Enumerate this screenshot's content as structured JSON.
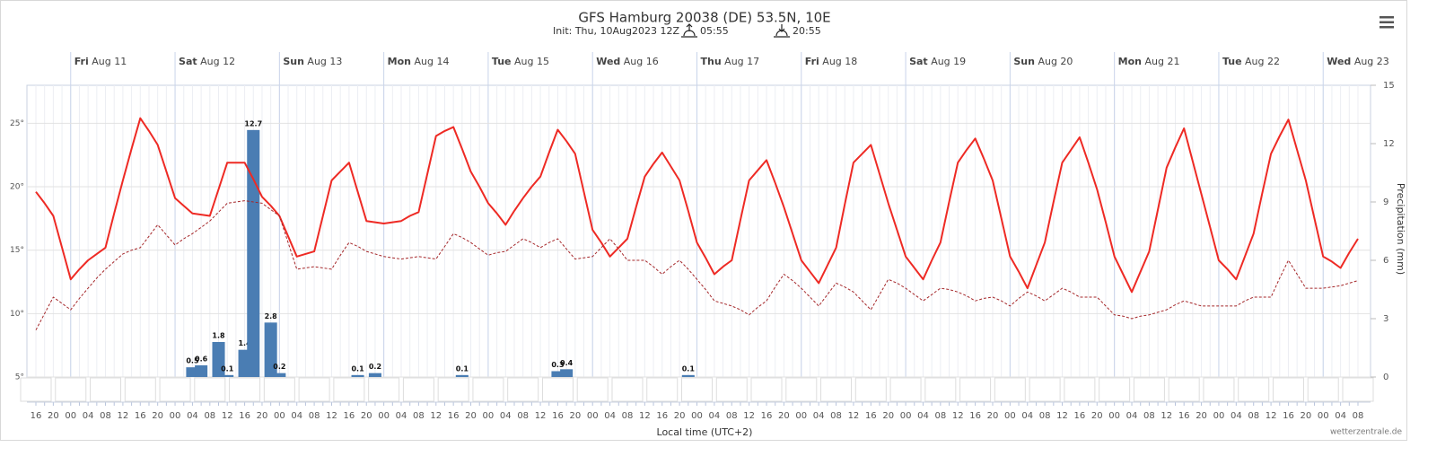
{
  "chart_data": {
    "type": "line",
    "title": "GFS Hamburg 20038 (DE) 53.5N, 10E",
    "subtitle": "Init: Thu, 10Aug2023 12Z",
    "sunrise": "05:55",
    "sunset": "20:55",
    "x_label": "Local time (UTC+2)",
    "y2_label": "Precipitation (mm)",
    "credit": "wetterzentrale.de",
    "days": [
      {
        "weekday": "Fri",
        "date": "Aug 11"
      },
      {
        "weekday": "Sat",
        "date": "Aug 12"
      },
      {
        "weekday": "Sun",
        "date": "Aug 13"
      },
      {
        "weekday": "Mon",
        "date": "Aug 14"
      },
      {
        "weekday": "Tue",
        "date": "Aug 15"
      },
      {
        "weekday": "Wed",
        "date": "Aug 16"
      },
      {
        "weekday": "Thu",
        "date": "Aug 17"
      },
      {
        "weekday": "Fri",
        "date": "Aug 18"
      },
      {
        "weekday": "Sat",
        "date": "Aug 19"
      },
      {
        "weekday": "Sun",
        "date": "Aug 20"
      },
      {
        "weekday": "Mon",
        "date": "Aug 21"
      },
      {
        "weekday": "Tue",
        "date": "Aug 22"
      },
      {
        "weekday": "Wed",
        "date": "Aug 23"
      }
    ],
    "categories": [
      "16",
      null,
      "20",
      null,
      "00",
      null,
      "04",
      null,
      "08",
      null,
      "12",
      null,
      "16",
      null,
      "20",
      null,
      "00",
      null,
      "04",
      null,
      "08",
      null,
      "12",
      null,
      "16",
      null,
      "20",
      null,
      "00",
      null,
      "04",
      null,
      "08",
      null,
      "12",
      null,
      "16",
      null,
      "20",
      null,
      "00",
      null,
      "04",
      null,
      "08",
      null,
      "12",
      null,
      "16",
      null,
      "20",
      null,
      "00",
      null,
      "04",
      null,
      "08",
      null,
      "12",
      null,
      "16",
      null,
      "20",
      null,
      "00",
      null,
      "04",
      null,
      "08",
      null,
      "12",
      null,
      "16",
      null,
      "20",
      null,
      "00",
      null,
      "04",
      null,
      "08",
      null,
      "12",
      null,
      "16",
      null,
      "20",
      null,
      "00",
      null,
      "04",
      null,
      "08",
      null,
      "12",
      null,
      "16",
      null,
      "20",
      null,
      "00",
      null,
      "04",
      null,
      "08",
      null,
      "12",
      null,
      "16",
      null,
      "20",
      null,
      "00",
      null,
      "04",
      null,
      "08",
      null,
      "12",
      null,
      "16",
      null,
      "20",
      null,
      "00",
      null,
      "04",
      null,
      "08",
      null,
      "12",
      null,
      "16",
      null,
      "20",
      null,
      "00",
      null,
      "04",
      null,
      "08",
      null,
      "12",
      null,
      "16",
      null,
      "20",
      null,
      "00",
      null,
      "04",
      null,
      "08"
    ],
    "series": [
      {
        "type": "line",
        "color": "#ee2a24",
        "dashed": false,
        "values": [
          19.6,
          18.7,
          17.7,
          15.2,
          12.7,
          13.5,
          14.2,
          14.7,
          15.2,
          17.9,
          20.5,
          23.0,
          25.4,
          24.4,
          23.3,
          21.2,
          19.1,
          18.5,
          17.9,
          17.8,
          17.7,
          19.8,
          21.9,
          21.9,
          21.9,
          20.6,
          19.2,
          18.5,
          17.7,
          16.1,
          14.5,
          14.7,
          14.9,
          17.7,
          20.5,
          21.2,
          21.9,
          19.6,
          17.3,
          17.2,
          17.1,
          17.2,
          17.3,
          17.7,
          18.0,
          21.0,
          24.0,
          24.4,
          24.7,
          23.0,
          21.2,
          20.0,
          18.7,
          17.9,
          17.0,
          18.1,
          19.1,
          20.0,
          20.8,
          22.7,
          24.5,
          23.6,
          22.6,
          19.6,
          16.6,
          15.6,
          14.5,
          15.2,
          15.9,
          18.4,
          20.8,
          21.8,
          22.7,
          21.6,
          20.5,
          18.1,
          15.6,
          14.4,
          13.1,
          13.7,
          14.2,
          17.4,
          20.5,
          21.3,
          22.1,
          20.3,
          18.4,
          16.3,
          14.2,
          13.3,
          12.4,
          13.8,
          15.2,
          18.6,
          21.9,
          22.6,
          23.3,
          21.0,
          18.7,
          16.6,
          14.5,
          13.6,
          12.7,
          14.2,
          15.6,
          18.8,
          21.9,
          22.9,
          23.8,
          22.2,
          20.5,
          17.5,
          14.5,
          13.3,
          12.0,
          13.8,
          15.6,
          18.8,
          21.9,
          22.9,
          23.9,
          21.9,
          19.8,
          17.2,
          14.5,
          13.1,
          11.7,
          13.3,
          14.9,
          18.2,
          21.5,
          23.1,
          24.6,
          22.0,
          19.4,
          16.8,
          14.2,
          13.5,
          12.7,
          14.5,
          16.3,
          19.5,
          22.6,
          24.0,
          25.3,
          22.9,
          20.5,
          17.5,
          14.5,
          14.1,
          13.6,
          14.8,
          15.9
        ]
      },
      {
        "type": "line",
        "color": "#a5272a",
        "dashed": true,
        "values": [
          8.7,
          10.0,
          11.3,
          10.8,
          10.3,
          11.2,
          12.0,
          12.8,
          13.5,
          14.1,
          14.7,
          15.0,
          15.2,
          16.1,
          17.0,
          16.2,
          15.4,
          15.9,
          16.3,
          16.8,
          17.3,
          18.0,
          18.7,
          18.8,
          18.9,
          18.8,
          18.7,
          18.2,
          17.7,
          15.6,
          13.5,
          13.6,
          13.7,
          13.6,
          13.5,
          14.6,
          15.6,
          15.3,
          14.9,
          14.7,
          14.5,
          14.4,
          14.3,
          14.4,
          14.5,
          14.4,
          14.3,
          15.3,
          16.3,
          16.0,
          15.6,
          15.1,
          14.6,
          14.8,
          14.9,
          15.4,
          15.9,
          15.6,
          15.2,
          15.6,
          15.9,
          15.1,
          14.3,
          14.4,
          14.5,
          15.2,
          15.9,
          15.1,
          14.2,
          14.2,
          14.2,
          13.7,
          13.1,
          13.7,
          14.2,
          13.5,
          12.7,
          11.9,
          11.0,
          10.8,
          10.6,
          10.3,
          9.9,
          10.5,
          11.0,
          12.1,
          13.1,
          12.6,
          12.0,
          11.3,
          10.6,
          11.5,
          12.4,
          12.1,
          11.7,
          11.0,
          10.3,
          11.5,
          12.7,
          12.4,
          12.0,
          11.5,
          11.0,
          11.5,
          12.0,
          11.9,
          11.7,
          11.4,
          11.0,
          11.2,
          11.3,
          11.0,
          10.6,
          11.2,
          11.7,
          11.4,
          11.0,
          11.5,
          12.0,
          11.7,
          11.3,
          11.3,
          11.3,
          10.6,
          9.9,
          9.8,
          9.6,
          9.8,
          9.9,
          10.1,
          10.3,
          10.7,
          11.0,
          10.8,
          10.6,
          10.6,
          10.6,
          10.6,
          10.6,
          11.0,
          11.3,
          11.3,
          11.3,
          12.8,
          14.2,
          13.1,
          12.0,
          12.0,
          12.0,
          12.1,
          12.2,
          12.4,
          12.6
        ]
      },
      {
        "type": "bar",
        "axis": "y2",
        "color": "#4a7db3",
        "values": [
          null,
          null,
          null,
          null,
          null,
          null,
          null,
          null,
          null,
          null,
          null,
          null,
          null,
          null,
          null,
          null,
          null,
          null,
          0.5,
          0.6,
          null,
          1.8,
          0.1,
          null,
          1.4,
          12.7,
          null,
          2.8,
          0.2,
          null,
          null,
          null,
          null,
          null,
          null,
          null,
          null,
          0.1,
          null,
          0.2,
          null,
          null,
          null,
          null,
          null,
          null,
          null,
          null,
          null,
          0.1,
          null,
          null,
          null,
          null,
          null,
          null,
          null,
          null,
          null,
          null,
          0.3,
          0.4,
          null,
          null,
          null,
          null,
          null,
          null,
          null,
          null,
          null,
          null,
          null,
          null,
          null,
          0.1,
          null,
          null,
          null,
          null,
          null,
          null,
          null,
          null,
          null,
          null,
          null,
          null,
          null,
          null,
          null,
          null,
          null,
          null,
          null,
          null,
          null,
          null,
          null,
          null,
          null,
          null,
          null,
          null,
          null,
          null,
          null,
          null,
          null,
          null,
          null,
          null,
          null,
          null,
          null,
          null,
          null,
          null,
          null,
          null,
          null,
          null,
          null,
          null,
          null,
          null,
          null,
          null,
          null,
          null,
          null,
          null,
          null,
          null,
          null,
          null,
          null,
          null,
          null,
          null,
          null,
          null,
          null,
          null,
          null,
          null,
          null,
          null,
          null,
          null,
          null,
          null,
          null
        ]
      }
    ],
    "ylim": [
      5,
      28
    ],
    "yticks": [
      {
        "value": 5,
        "label": "5°"
      },
      {
        "value": 10,
        "label": "10°"
      },
      {
        "value": 15,
        "label": "15°"
      },
      {
        "value": 20,
        "label": "20°"
      },
      {
        "value": 25,
        "label": "25°"
      }
    ],
    "y2lim": [
      0,
      15
    ],
    "y2ticks": [
      0,
      3,
      6,
      9,
      12,
      15
    ],
    "grid": true
  }
}
